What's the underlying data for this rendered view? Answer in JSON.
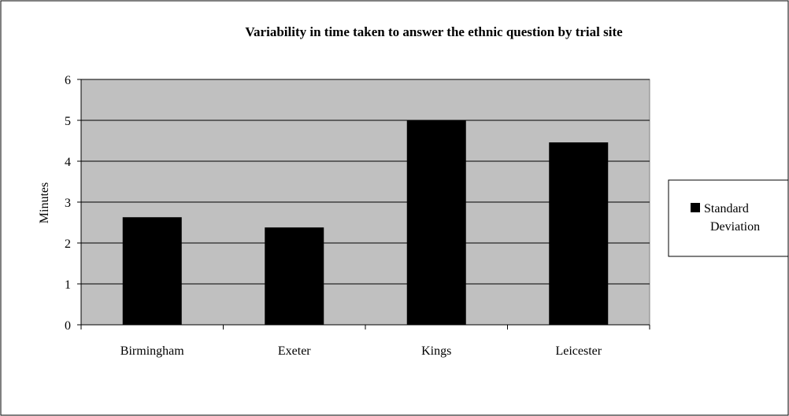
{
  "chart_data": {
    "type": "bar",
    "title": "Variability in time taken to answer the ethnic question by trial site",
    "xlabel": "",
    "ylabel": "Minutes",
    "categories": [
      "Birmingham",
      "Exeter",
      "Kings",
      "Leicester"
    ],
    "series": [
      {
        "name": "Standard Deviation",
        "values": [
          2.63,
          2.38,
          5.0,
          4.46
        ],
        "color": "#000000"
      }
    ],
    "ylim": [
      0,
      6
    ],
    "yticks": [
      "0",
      "1",
      "2",
      "3",
      "4",
      "5",
      "6"
    ],
    "grid": true,
    "legend": {
      "position": "right",
      "label_lines": [
        "Standard",
        "Deviation"
      ]
    },
    "colors": {
      "plot_background": "#c0c0c0",
      "bar": "#000000",
      "gridline": "#000000",
      "frame": "#000000"
    }
  }
}
